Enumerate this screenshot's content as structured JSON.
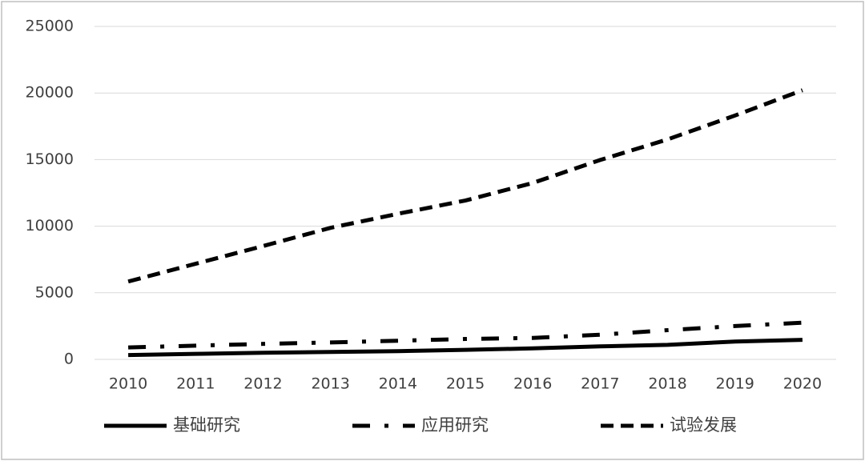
{
  "chart_data": {
    "type": "line",
    "categories": [
      "2010",
      "2011",
      "2012",
      "2013",
      "2014",
      "2015",
      "2016",
      "2017",
      "2018",
      "2019",
      "2020"
    ],
    "series": [
      {
        "name": "基础研究",
        "color": "#000000",
        "dash": "solid",
        "values": [
          325,
          412,
          499,
          555,
          614,
          716,
          823,
          976,
          1090,
          1336,
          1467
        ]
      },
      {
        "name": "应用研究",
        "color": "#000000",
        "dash": "dashdot",
        "values": [
          894,
          1028,
          1162,
          1270,
          1399,
          1529,
          1611,
          1849,
          2191,
          2499,
          2757
        ]
      },
      {
        "name": "试验发展",
        "color": "#000000",
        "dash": "dash",
        "values": [
          5844,
          7179,
          8508,
          9875,
          10930,
          11927,
          13244,
          14970,
          16517,
          18310,
          20208
        ]
      }
    ],
    "ylim": [
      0,
      25000
    ],
    "yticks": [
      0,
      5000,
      10000,
      15000,
      20000,
      25000
    ],
    "grid": true
  }
}
